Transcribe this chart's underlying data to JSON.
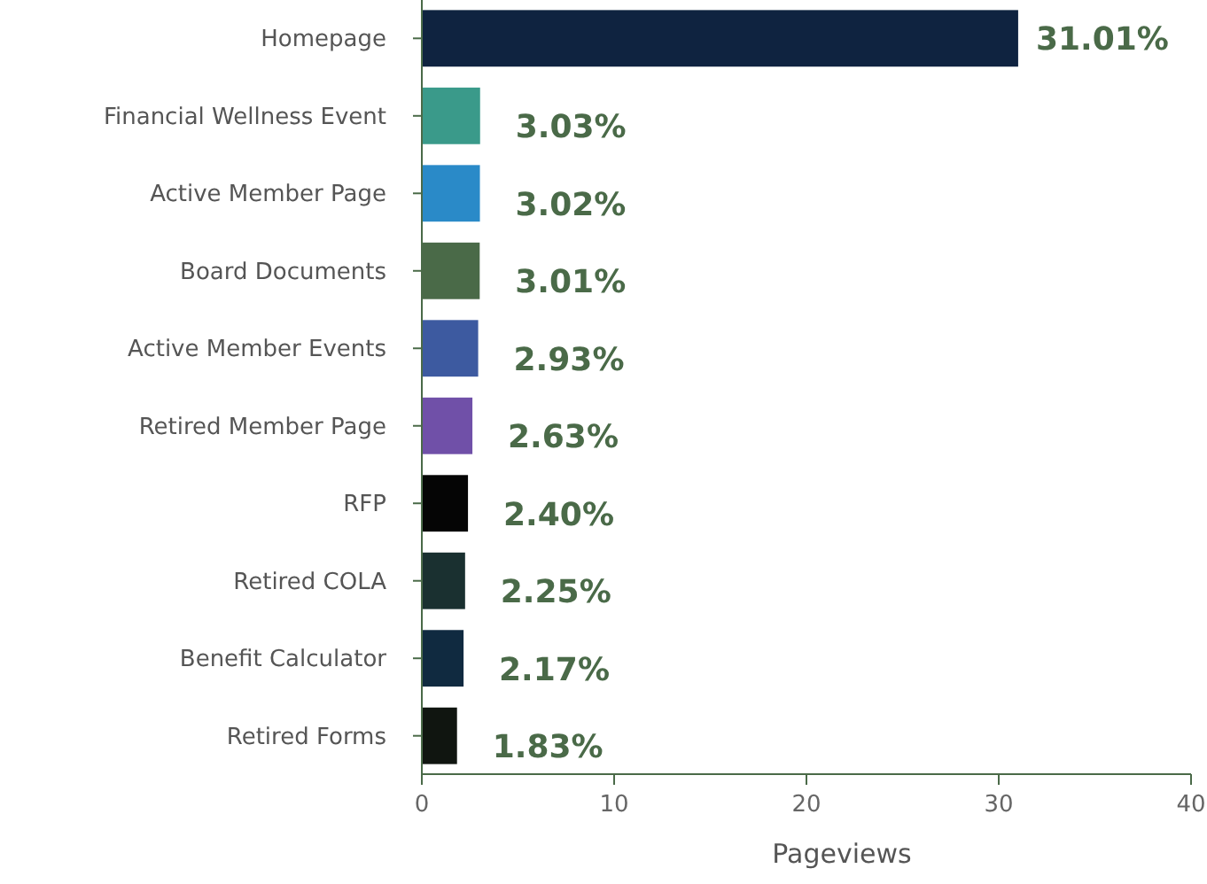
{
  "chart_data": {
    "type": "bar",
    "orientation": "horizontal",
    "xlabel": "Pageviews",
    "categories": [
      "Homepage",
      "Financial Wellness Event",
      "Active Member Page",
      "Board Documents",
      "Active Member Events",
      "Retired Member Page",
      "RFP",
      "Retired COLA",
      "Benefit Calculator",
      "Retired Forms"
    ],
    "values": [
      31.01,
      3.03,
      3.02,
      3.01,
      2.93,
      2.63,
      2.4,
      2.25,
      2.17,
      1.83
    ],
    "colors": [
      "#0f2340",
      "#3a9a8a",
      "#2a8ac8",
      "#4a6a48",
      "#3d5aa0",
      "#7050a8",
      "#050505",
      "#1a3030",
      "#102a40",
      "#101510"
    ],
    "value_labels": [
      "31.01%",
      "3.03%",
      "3.02%",
      "3.01%",
      "2.93%",
      "2.63%",
      "2.40%",
      "2.25%",
      "2.17%",
      "1.83%"
    ],
    "xlim": [
      0,
      40
    ],
    "xticks": [
      0,
      10,
      20,
      30,
      40
    ],
    "grid": false
  }
}
